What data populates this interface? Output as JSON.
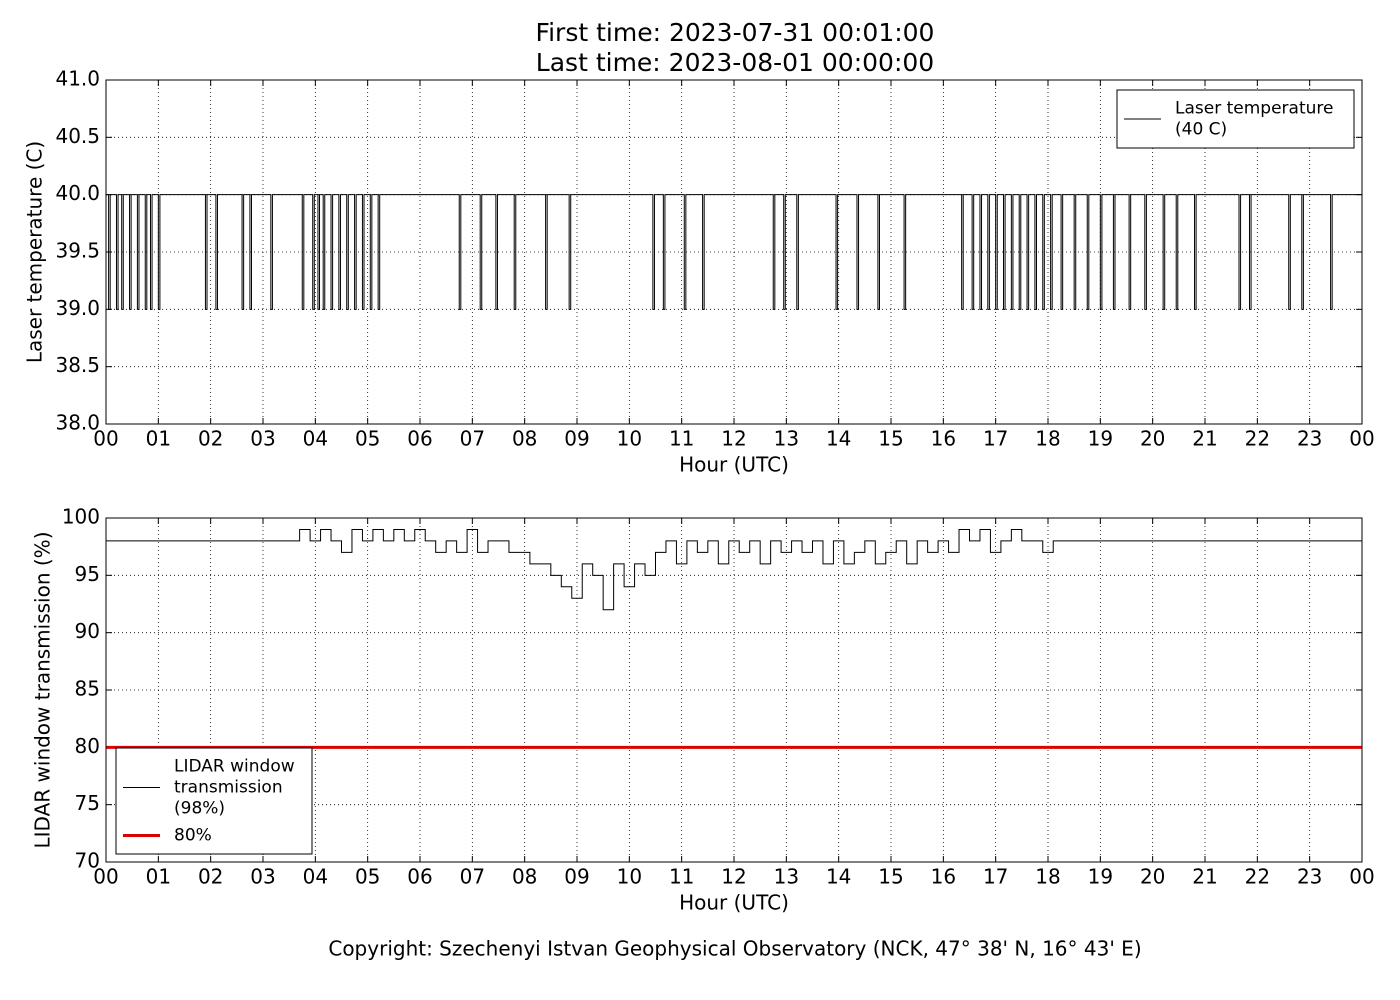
{
  "chart_data": [
    {
      "type": "line",
      "title": [
        "First time: 2023-07-31 00:01:00",
        "Last time: 2023-08-01 00:00:00"
      ],
      "xlabel": "Hour (UTC)",
      "ylabel": "Laser temperature (C)",
      "xlim": [
        0,
        24
      ],
      "xticks": [
        {
          "value": 0,
          "label": "00"
        },
        {
          "value": 1,
          "label": "01"
        },
        {
          "value": 2,
          "label": "02"
        },
        {
          "value": 3,
          "label": "03"
        },
        {
          "value": 4,
          "label": "04"
        },
        {
          "value": 5,
          "label": "05"
        },
        {
          "value": 6,
          "label": "06"
        },
        {
          "value": 7,
          "label": "07"
        },
        {
          "value": 8,
          "label": "08"
        },
        {
          "value": 9,
          "label": "09"
        },
        {
          "value": 10,
          "label": "10"
        },
        {
          "value": 11,
          "label": "11"
        },
        {
          "value": 12,
          "label": "12"
        },
        {
          "value": 13,
          "label": "13"
        },
        {
          "value": 14,
          "label": "14"
        },
        {
          "value": 15,
          "label": "15"
        },
        {
          "value": 16,
          "label": "16"
        },
        {
          "value": 17,
          "label": "17"
        },
        {
          "value": 18,
          "label": "18"
        },
        {
          "value": 19,
          "label": "19"
        },
        {
          "value": 20,
          "label": "20"
        },
        {
          "value": 21,
          "label": "21"
        },
        {
          "value": 22,
          "label": "22"
        },
        {
          "value": 23,
          "label": "23"
        },
        {
          "value": 24,
          "label": "00"
        }
      ],
      "ylim": [
        38,
        41
      ],
      "yticks": [
        {
          "value": 38,
          "label": "38.0"
        },
        38.5,
        {
          "value": 39,
          "label": "39.0"
        },
        39.5,
        {
          "value": 40,
          "label": "40.0"
        },
        40.5,
        {
          "value": 41,
          "label": "41.0"
        }
      ],
      "grid": true,
      "legend": "upper right",
      "series": [
        {
          "name": [
            "Laser temperature",
            "(40 C)"
          ],
          "color": "#000000",
          "width": 1,
          "drawstyle": "steps-post",
          "x": [
            0,
            0.05,
            0.08,
            0.2,
            0.23,
            0.3,
            0.33,
            0.45,
            0.48,
            0.6,
            0.63,
            0.75,
            0.78,
            0.85,
            0.88,
            1.0,
            1.03,
            1.9,
            1.93,
            2.1,
            2.13,
            2.6,
            2.63,
            2.75,
            2.78,
            3.15,
            3.18,
            3.75,
            3.78,
            3.95,
            3.98,
            4.05,
            4.08,
            4.15,
            4.18,
            4.3,
            4.33,
            4.45,
            4.48,
            4.6,
            4.63,
            4.75,
            4.78,
            4.9,
            4.93,
            5.05,
            5.08,
            5.2,
            5.23,
            6.75,
            6.78,
            7.15,
            7.18,
            7.45,
            7.48,
            7.8,
            7.83,
            8.4,
            8.43,
            8.85,
            8.88,
            10.45,
            10.48,
            10.65,
            10.68,
            11.05,
            11.08,
            11.4,
            11.43,
            12.75,
            12.78,
            12.95,
            12.98,
            13.2,
            13.23,
            13.95,
            13.98,
            14.35,
            14.38,
            14.75,
            14.78,
            15.25,
            15.28,
            16.35,
            16.38,
            16.55,
            16.58,
            16.7,
            16.73,
            16.85,
            16.88,
            17.0,
            17.03,
            17.15,
            17.18,
            17.3,
            17.33,
            17.45,
            17.48,
            17.6,
            17.63,
            17.75,
            17.78,
            17.9,
            17.93,
            18.05,
            18.08,
            18.25,
            18.28,
            18.5,
            18.53,
            18.75,
            18.78,
            19.0,
            19.03,
            19.25,
            19.28,
            19.55,
            19.58,
            19.85,
            19.88,
            20.2,
            20.23,
            20.45,
            20.48,
            20.8,
            20.83,
            21.65,
            21.68,
            21.85,
            21.88,
            22.6,
            22.63,
            22.85,
            22.88,
            23.4,
            23.43,
            24
          ],
          "values": [
            40,
            39,
            40,
            39,
            40,
            39,
            40,
            39,
            40,
            39,
            40,
            39,
            40,
            39,
            40,
            39,
            40,
            39,
            40,
            39,
            40,
            39,
            40,
            39,
            40,
            39,
            40,
            39,
            40,
            39,
            40,
            39,
            40,
            39,
            40,
            39,
            40,
            39,
            40,
            39,
            40,
            39,
            40,
            39,
            40,
            39,
            40,
            39,
            40,
            39,
            40,
            39,
            40,
            39,
            40,
            39,
            40,
            39,
            40,
            39,
            40,
            39,
            40,
            39,
            40,
            39,
            40,
            39,
            40,
            39,
            40,
            39,
            40,
            39,
            40,
            39,
            40,
            39,
            40,
            39,
            40,
            39,
            40,
            39,
            40,
            39,
            40,
            39,
            40,
            39,
            40,
            39,
            40,
            39,
            40,
            39,
            40,
            39,
            40,
            39,
            40,
            39,
            40,
            39,
            40,
            39,
            40,
            39,
            40,
            39,
            40,
            39,
            40,
            39,
            40,
            39,
            40,
            39,
            40,
            39,
            40,
            39,
            40,
            39,
            40,
            39,
            40,
            39,
            40,
            39,
            40,
            39,
            40,
            39,
            40,
            39,
            40,
            40
          ]
        }
      ]
    },
    {
      "type": "line",
      "xlabel": "Hour (UTC)",
      "ylabel": "LIDAR window transmission (%)",
      "xlim": [
        0,
        24
      ],
      "xticks": [
        {
          "value": 0,
          "label": "00"
        },
        {
          "value": 1,
          "label": "01"
        },
        {
          "value": 2,
          "label": "02"
        },
        {
          "value": 3,
          "label": "03"
        },
        {
          "value": 4,
          "label": "04"
        },
        {
          "value": 5,
          "label": "05"
        },
        {
          "value": 6,
          "label": "06"
        },
        {
          "value": 7,
          "label": "07"
        },
        {
          "value": 8,
          "label": "08"
        },
        {
          "value": 9,
          "label": "09"
        },
        {
          "value": 10,
          "label": "10"
        },
        {
          "value": 11,
          "label": "11"
        },
        {
          "value": 12,
          "label": "12"
        },
        {
          "value": 13,
          "label": "13"
        },
        {
          "value": 14,
          "label": "14"
        },
        {
          "value": 15,
          "label": "15"
        },
        {
          "value": 16,
          "label": "16"
        },
        {
          "value": 17,
          "label": "17"
        },
        {
          "value": 18,
          "label": "18"
        },
        {
          "value": 19,
          "label": "19"
        },
        {
          "value": 20,
          "label": "20"
        },
        {
          "value": 21,
          "label": "21"
        },
        {
          "value": 22,
          "label": "22"
        },
        {
          "value": 23,
          "label": "23"
        },
        {
          "value": 24,
          "label": "00"
        }
      ],
      "ylim": [
        70,
        100
      ],
      "yticks": [
        70,
        75,
        80,
        85,
        90,
        95,
        100
      ],
      "grid": true,
      "legend": "lower left",
      "series": [
        {
          "name": [
            "LIDAR window",
            "transmission",
            "(98%)"
          ],
          "color": "#000000",
          "width": 1,
          "drawstyle": "steps-post",
          "x": [
            0,
            3.7,
            3.9,
            4.1,
            4.3,
            4.5,
            4.7,
            4.9,
            5.1,
            5.3,
            5.5,
            5.7,
            5.9,
            6.1,
            6.3,
            6.5,
            6.7,
            6.9,
            7.1,
            7.3,
            7.5,
            7.7,
            7.9,
            8.1,
            8.3,
            8.5,
            8.7,
            8.9,
            9.1,
            9.3,
            9.5,
            9.7,
            9.9,
            10.1,
            10.3,
            10.5,
            10.7,
            10.9,
            11.1,
            11.3,
            11.5,
            11.7,
            11.9,
            12.1,
            12.3,
            12.5,
            12.7,
            12.9,
            13.1,
            13.3,
            13.5,
            13.7,
            13.9,
            14.1,
            14.3,
            14.5,
            14.7,
            14.9,
            15.1,
            15.3,
            15.5,
            15.7,
            15.9,
            16.1,
            16.3,
            16.5,
            16.7,
            16.9,
            17.1,
            17.3,
            17.5,
            17.7,
            17.9,
            18.1,
            24
          ],
          "values": [
            98,
            99,
            98,
            99,
            98,
            97,
            99,
            98,
            99,
            98,
            99,
            98,
            99,
            98,
            97,
            98,
            97,
            99,
            97,
            98,
            98,
            97,
            97,
            96,
            96,
            95,
            94,
            93,
            96,
            95,
            92,
            96,
            94,
            96,
            95,
            97,
            98,
            96,
            98,
            97,
            98,
            96,
            98,
            97,
            98,
            96,
            98,
            97,
            98,
            97,
            98,
            96,
            98,
            96,
            97,
            98,
            96,
            97,
            98,
            96,
            98,
            97,
            98,
            97,
            99,
            98,
            99,
            97,
            98,
            99,
            98,
            98,
            97,
            98,
            98
          ]
        },
        {
          "name": [
            "80%"
          ],
          "color": "#dd0000",
          "width": 3,
          "drawstyle": "default",
          "x": [
            0,
            24
          ],
          "values": [
            80,
            80
          ]
        }
      ]
    }
  ],
  "footer": "Copyright: Szechenyi Istvan Geophysical Observatory (NCK, 47° 38' N, 16° 43' E)"
}
